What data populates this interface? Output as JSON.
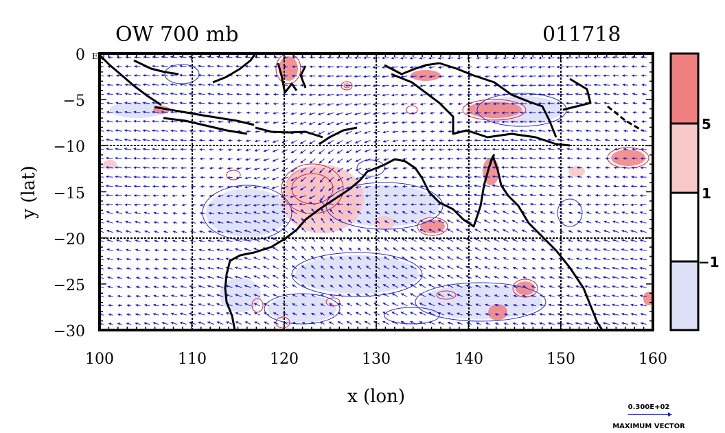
{
  "title_left": "OW 700 mb",
  "title_right": "011718",
  "y_axis_label": "y (lat)",
  "x_axis_label": "x (lon)",
  "eq_label": "EQ",
  "map": {
    "lon_range": [
      100,
      160
    ],
    "lat_range": [
      -30,
      0
    ],
    "x_ticks": [
      "100",
      "110",
      "120",
      "130",
      "140",
      "150",
      "160"
    ],
    "y_ticks": [
      "0",
      "−5",
      "−10",
      "−15",
      "−20",
      "−25",
      "−30"
    ]
  },
  "colorbar": {
    "labels": [
      "5",
      "1",
      "−1"
    ],
    "colors": [
      "#f08080",
      "#f9c8c8",
      "#ffffff",
      "#dde0f7"
    ]
  },
  "vector_key": {
    "magnitude": "0.300E+02",
    "caption": "MAXIMUM VECTOR"
  },
  "colors": {
    "coast": "#000000",
    "vector": "#1a1adf",
    "positive": "#e02020",
    "negative": "#2a2ad0"
  }
}
